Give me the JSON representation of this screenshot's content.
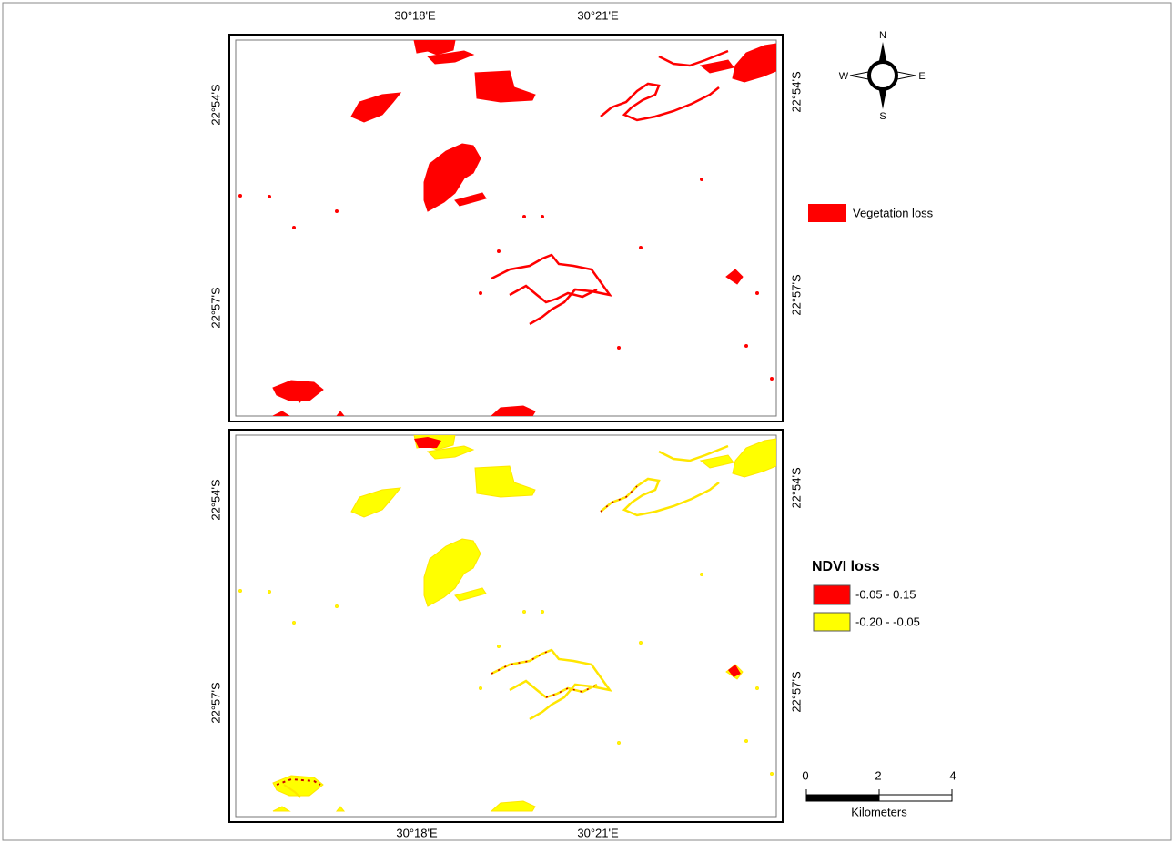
{
  "top_axis": {
    "labels": [
      "30°18'E",
      "30°21'E"
    ]
  },
  "bottom_axis": {
    "labels": [
      "30°18'E",
      "30°21'E"
    ]
  },
  "panels": [
    {
      "left_labels": [
        "22°54'S",
        "22°57'S"
      ],
      "right_labels": [
        "22°54'S",
        "22°57'S"
      ]
    },
    {
      "left_labels": [
        "22°54'S",
        "22°57'S"
      ],
      "right_labels": [
        "22°54'S",
        "22°57'S"
      ]
    }
  ],
  "compass": {
    "n": "N",
    "s": "S",
    "e": "E",
    "w": "W"
  },
  "legend_top": {
    "label": "Vegetation loss"
  },
  "legend_bottom": {
    "title": "NDVI loss",
    "items": [
      "-0.05 - 0.15",
      "-0.20 - -0.05"
    ]
  },
  "scale_bar": {
    "ticks": [
      0,
      2,
      4
    ],
    "unit": "Kilometers"
  }
}
